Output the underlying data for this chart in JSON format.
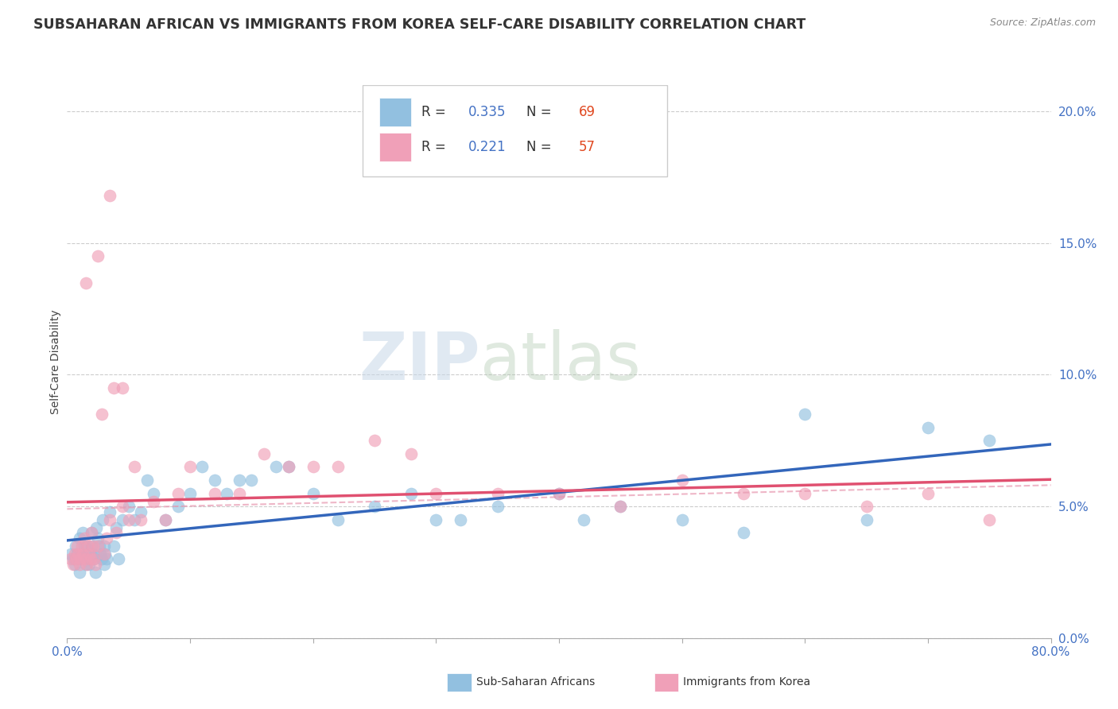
{
  "title": "SUBSAHARAN AFRICAN VS IMMIGRANTS FROM KOREA SELF-CARE DISABILITY CORRELATION CHART",
  "source_text": "Source: ZipAtlas.com",
  "ylabel": "Self-Care Disability",
  "xlim": [
    0,
    80
  ],
  "ylim": [
    0,
    21
  ],
  "yticks": [
    0,
    5,
    10,
    15,
    20
  ],
  "ytick_labels": [
    "0.0%",
    "5.0%",
    "10.0%",
    "15.0%",
    "20.0%"
  ],
  "legend_R1": "0.335",
  "legend_N1": "69",
  "legend_R2": "0.221",
  "legend_N2": "57",
  "color_blue": "#92c0e0",
  "color_blue_dark": "#3366bb",
  "color_pink": "#f0a0b8",
  "color_pink_line": "#e05070",
  "color_pink_dash": "#e898b0",
  "watermark_zip": "ZIP",
  "watermark_atlas": "atlas",
  "title_color": "#333333",
  "title_fontsize": 12.5,
  "blue_x": [
    0.3,
    0.5,
    0.6,
    0.7,
    0.8,
    0.9,
    1.0,
    1.0,
    1.1,
    1.2,
    1.3,
    1.4,
    1.5,
    1.5,
    1.6,
    1.7,
    1.8,
    1.9,
    2.0,
    2.0,
    2.1,
    2.2,
    2.3,
    2.4,
    2.5,
    2.6,
    2.7,
    2.8,
    2.9,
    3.0,
    3.0,
    3.1,
    3.2,
    3.5,
    3.8,
    4.0,
    4.2,
    4.5,
    5.0,
    5.5,
    6.0,
    6.5,
    7.0,
    8.0,
    9.0,
    10.0,
    11.0,
    12.0,
    13.0,
    14.0,
    15.0,
    17.0,
    18.0,
    20.0,
    22.0,
    25.0,
    28.0,
    30.0,
    32.0,
    35.0,
    40.0,
    42.0,
    45.0,
    50.0,
    55.0,
    60.0,
    65.0,
    70.0,
    75.0
  ],
  "blue_y": [
    3.2,
    3.0,
    2.8,
    3.5,
    3.2,
    3.0,
    2.5,
    3.8,
    3.2,
    3.0,
    4.0,
    3.5,
    3.2,
    2.8,
    3.5,
    3.0,
    2.8,
    3.2,
    3.5,
    4.0,
    3.2,
    3.0,
    2.5,
    4.2,
    3.8,
    3.5,
    3.2,
    3.0,
    4.5,
    3.5,
    2.8,
    3.2,
    3.0,
    4.8,
    3.5,
    4.2,
    3.0,
    4.5,
    5.0,
    4.5,
    4.8,
    6.0,
    5.5,
    4.5,
    5.0,
    5.5,
    6.5,
    6.0,
    5.5,
    6.0,
    6.0,
    6.5,
    6.5,
    5.5,
    4.5,
    5.0,
    5.5,
    4.5,
    4.5,
    5.0,
    5.5,
    4.5,
    5.0,
    4.5,
    4.0,
    8.5,
    4.5,
    8.0,
    7.5
  ],
  "pink_x": [
    0.3,
    0.5,
    0.6,
    0.7,
    0.8,
    0.9,
    1.0,
    1.1,
    1.2,
    1.3,
    1.4,
    1.5,
    1.6,
    1.7,
    1.8,
    1.9,
    2.0,
    2.1,
    2.2,
    2.3,
    2.5,
    2.8,
    3.0,
    3.2,
    3.5,
    3.8,
    4.0,
    4.5,
    5.0,
    5.5,
    6.0,
    7.0,
    8.0,
    9.0,
    10.0,
    12.0,
    14.0,
    16.0,
    18.0,
    20.0,
    22.0,
    25.0,
    28.0,
    30.0,
    35.0,
    40.0,
    45.0,
    50.0,
    55.0,
    60.0,
    65.0,
    70.0,
    75.0,
    1.5,
    2.5,
    3.5,
    4.5
  ],
  "pink_y": [
    3.0,
    2.8,
    3.2,
    3.0,
    3.5,
    3.2,
    2.8,
    3.0,
    3.5,
    3.2,
    3.8,
    3.0,
    2.8,
    3.5,
    3.2,
    3.0,
    4.0,
    3.5,
    3.0,
    2.8,
    3.5,
    8.5,
    3.2,
    3.8,
    4.5,
    9.5,
    4.0,
    5.0,
    4.5,
    6.5,
    4.5,
    5.2,
    4.5,
    5.5,
    6.5,
    5.5,
    5.5,
    7.0,
    6.5,
    6.5,
    6.5,
    7.5,
    7.0,
    5.5,
    5.5,
    5.5,
    5.0,
    6.0,
    5.5,
    5.5,
    5.0,
    5.5,
    4.5,
    13.5,
    14.5,
    16.8,
    9.5
  ]
}
